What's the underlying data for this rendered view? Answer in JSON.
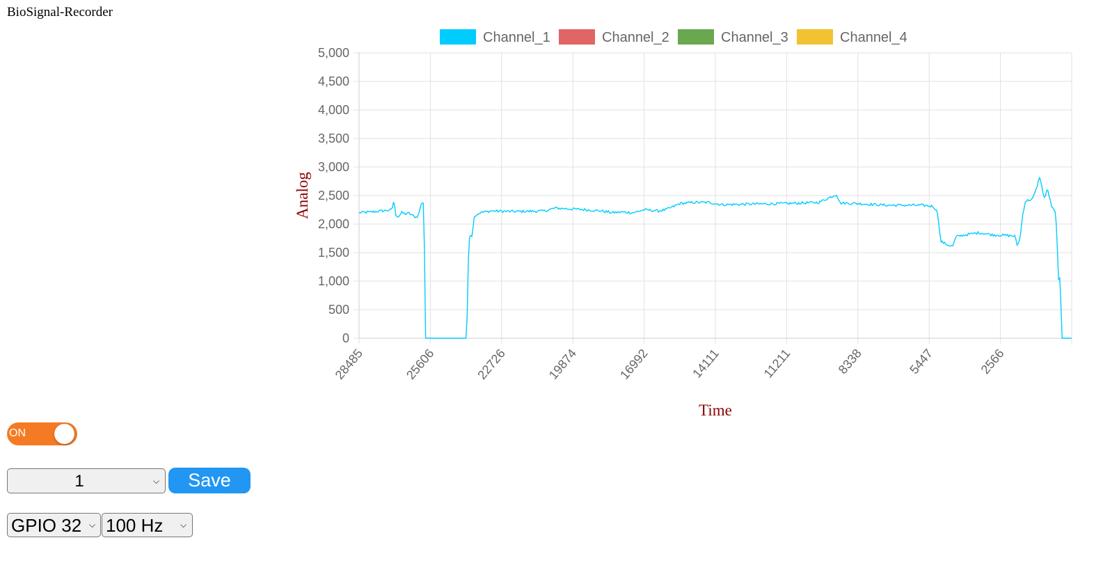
{
  "app": {
    "title": "BioSignal-Recorder"
  },
  "chart_data": {
    "type": "line",
    "legend_position": "top",
    "grid": true,
    "series": [
      {
        "name": "Channel_1",
        "color": "#00ccff",
        "values": []
      },
      {
        "name": "Channel_2",
        "color": "#e06666",
        "values": []
      },
      {
        "name": "Channel_3",
        "color": "#6aa84f",
        "values": []
      },
      {
        "name": "Channel_4",
        "color": "#f1c232",
        "values": []
      }
    ],
    "x_tick_labels": [
      "28485",
      "25606",
      "22726",
      "19874",
      "16992",
      "14111",
      "11211",
      "8338",
      "5447",
      "2566"
    ],
    "y_tick_labels": [
      "5,000",
      "4,500",
      "4,000",
      "3,500",
      "3,000",
      "2,500",
      "2,000",
      "1,500",
      "1,000",
      "500",
      "0"
    ],
    "ylim": [
      0,
      5000
    ],
    "xlabel": "Time",
    "ylabel": "Analog",
    "axis_title_color": "#8b0000",
    "channel_1_profile": [
      [
        0.0,
        2200
      ],
      [
        1.5,
        2210
      ],
      [
        3.0,
        2230
      ],
      [
        4.0,
        2240
      ],
      [
        4.6,
        2250
      ],
      [
        4.9,
        2430
      ],
      [
        5.1,
        2170
      ],
      [
        5.5,
        2130
      ],
      [
        6.0,
        2200
      ],
      [
        6.5,
        2180
      ],
      [
        7.0,
        2190
      ],
      [
        7.5,
        2150
      ],
      [
        8.0,
        2120
      ],
      [
        8.3,
        2150
      ],
      [
        8.8,
        2380
      ],
      [
        9.1,
        2370
      ],
      [
        9.3,
        0
      ],
      [
        15.1,
        0
      ],
      [
        15.4,
        1700
      ],
      [
        15.6,
        1850
      ],
      [
        15.8,
        1760
      ],
      [
        16.2,
        2150
      ],
      [
        17.0,
        2200
      ],
      [
        18.5,
        2230
      ],
      [
        22.0,
        2220
      ],
      [
        26.0,
        2230
      ],
      [
        27.5,
        2280
      ],
      [
        32.0,
        2250
      ],
      [
        34.0,
        2230
      ],
      [
        35.5,
        2200
      ],
      [
        37.0,
        2210
      ],
      [
        38.5,
        2200
      ],
      [
        40.0,
        2250
      ],
      [
        42.0,
        2230
      ],
      [
        43.0,
        2250
      ],
      [
        44.0,
        2300
      ],
      [
        45.0,
        2360
      ],
      [
        47.0,
        2380
      ],
      [
        49.0,
        2380
      ],
      [
        51.0,
        2340
      ],
      [
        55.0,
        2350
      ],
      [
        60.0,
        2360
      ],
      [
        64.5,
        2380
      ],
      [
        67.0,
        2520
      ],
      [
        67.5,
        2370
      ],
      [
        70.0,
        2360
      ],
      [
        74.0,
        2330
      ],
      [
        79.0,
        2330
      ],
      [
        80.6,
        2310
      ],
      [
        81.2,
        2200
      ],
      [
        81.6,
        1700
      ],
      [
        82.5,
        1640
      ],
      [
        83.3,
        1610
      ],
      [
        83.8,
        1780
      ],
      [
        85.0,
        1810
      ],
      [
        87.0,
        1850
      ],
      [
        89.0,
        1810
      ],
      [
        91.0,
        1800
      ],
      [
        92.0,
        1790
      ],
      [
        92.4,
        1610
      ],
      [
        92.8,
        1790
      ],
      [
        93.1,
        2150
      ],
      [
        93.5,
        2400
      ],
      [
        94.0,
        2420
      ],
      [
        94.5,
        2440
      ],
      [
        95.0,
        2600
      ],
      [
        95.5,
        2830
      ],
      [
        95.9,
        2600
      ],
      [
        96.2,
        2450
      ],
      [
        96.6,
        2620
      ],
      [
        97.2,
        2300
      ],
      [
        97.7,
        2200
      ],
      [
        97.9,
        1900
      ],
      [
        98.2,
        900
      ],
      [
        98.4,
        1100
      ],
      [
        98.6,
        0
      ],
      [
        100.0,
        0
      ]
    ]
  },
  "controls": {
    "toggle_label": "ON",
    "file_select": {
      "selected": "1"
    },
    "save_label": "Save",
    "gpio_select": {
      "selected": "GPIO 32"
    },
    "rate_select": {
      "selected": "100 Hz"
    }
  },
  "icons": {
    "select_arrow": "chevron-down-icon"
  }
}
